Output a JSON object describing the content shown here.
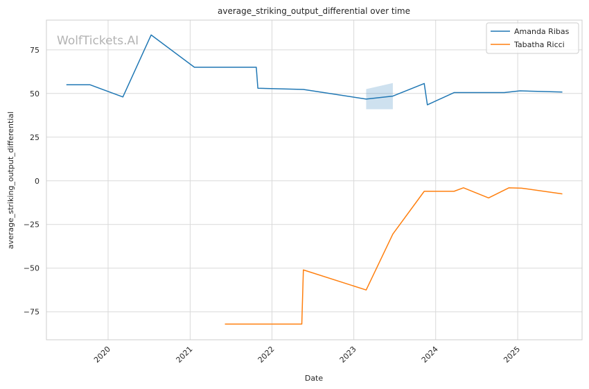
{
  "chart_data": {
    "type": "line",
    "title": "average_striking_output_differential over time",
    "xlabel": "Date",
    "ylabel": "average_striking_output_differential",
    "watermark": "WolfTickets.AI",
    "xlim": [
      "2019-04-01",
      "2025-10-15"
    ],
    "ylim": [
      -91,
      92
    ],
    "x_ticks": [
      "2020",
      "2021",
      "2022",
      "2023",
      "2024",
      "2025"
    ],
    "x_tick_dates": [
      "2020-01-01",
      "2021-01-01",
      "2022-01-01",
      "2023-01-01",
      "2024-01-01",
      "2025-01-01"
    ],
    "y_ticks": [
      75,
      50,
      25,
      0,
      -25,
      -50,
      -75
    ],
    "y_tick_labels": [
      "75",
      "50",
      "25",
      "0",
      "−25",
      "−50",
      "−75"
    ],
    "grid": true,
    "legend_position": "top-right",
    "series": [
      {
        "name": "Amanda Ribas",
        "color": "#1f77b4",
        "points": [
          [
            "2019-06-29",
            55
          ],
          [
            "2019-10-12",
            55
          ],
          [
            "2020-03-07",
            48
          ],
          [
            "2020-07-11",
            83.5
          ],
          [
            "2021-01-20",
            65
          ],
          [
            "2021-10-23",
            65
          ],
          [
            "2021-10-30",
            53
          ],
          [
            "2022-05-21",
            52.3
          ],
          [
            "2023-02-25",
            46.8
          ],
          [
            "2023-06-24",
            48.5
          ],
          [
            "2023-11-11",
            55.7
          ],
          [
            "2023-11-25",
            43.5
          ],
          [
            "2024-03-23",
            50.5
          ],
          [
            "2024-11-02",
            50.5
          ],
          [
            "2025-01-11",
            51.5
          ],
          [
            "2025-07-19",
            50.8
          ]
        ],
        "confidence_band": [
          [
            "2023-02-25",
            41,
            52.5
          ],
          [
            "2023-06-24",
            41,
            56
          ]
        ]
      },
      {
        "name": "Tabatha Ricci",
        "color": "#ff7f0e",
        "points": [
          [
            "2021-06-05",
            -82
          ],
          [
            "2022-05-14",
            -82
          ],
          [
            "2022-05-21",
            -51
          ],
          [
            "2023-02-25",
            -62.5
          ],
          [
            "2023-06-24",
            -30.5
          ],
          [
            "2023-11-11",
            -6
          ],
          [
            "2024-03-23",
            -6
          ],
          [
            "2024-05-04",
            -4
          ],
          [
            "2024-08-24",
            -9.8
          ],
          [
            "2024-11-23",
            -4
          ],
          [
            "2025-01-18",
            -4.2
          ],
          [
            "2025-07-19",
            -7.5
          ]
        ]
      }
    ]
  }
}
